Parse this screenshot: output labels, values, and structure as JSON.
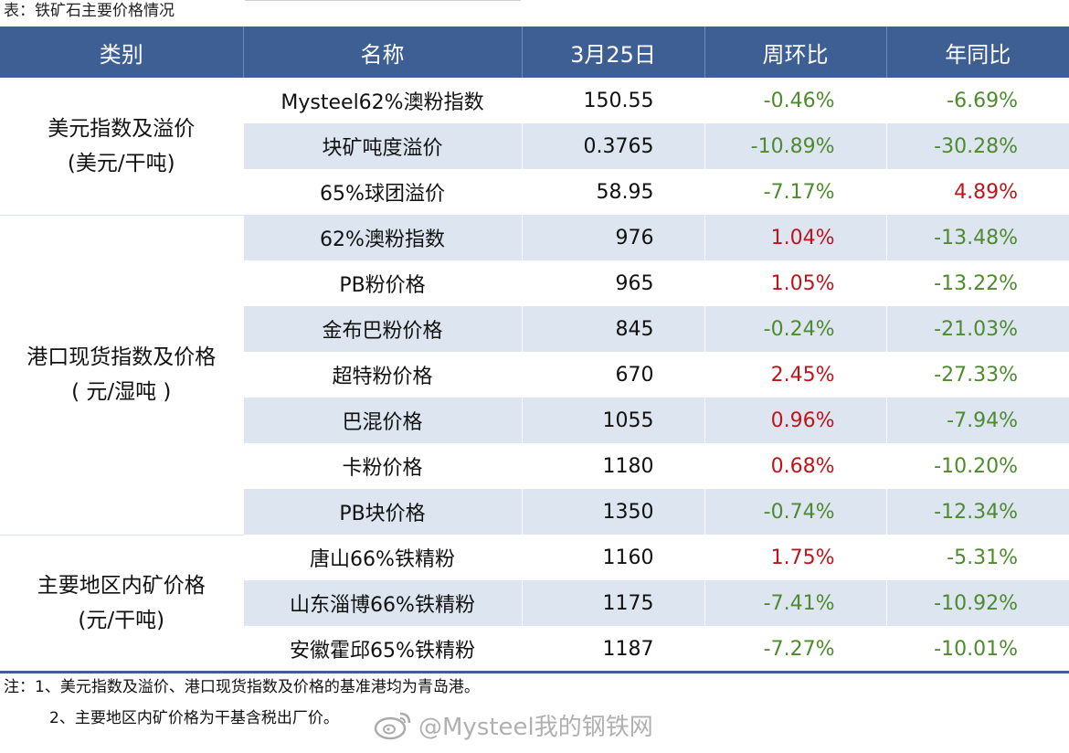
{
  "caption": "表：铁矿石主要价格情况",
  "headers": [
    "类别",
    "名称",
    "3月25日",
    "周环比",
    "年同比"
  ],
  "groups": [
    {
      "category": "美元指数及溢价\n(美元/干吨)",
      "rows": [
        {
          "name": "Mysteel62%澳粉指数",
          "value": "150.55",
          "wow": "-0.46%",
          "yoy": "-6.69%"
        },
        {
          "name": "块矿吨度溢价",
          "value": "0.3765",
          "wow": "-10.89%",
          "yoy": "-30.28%"
        },
        {
          "name": "65%球团溢价",
          "value": "58.95",
          "wow": "-7.17%",
          "yoy": "4.89%"
        }
      ]
    },
    {
      "category": "港口现货指数及价格\n( 元/湿吨 )",
      "rows": [
        {
          "name": "62%澳粉指数",
          "value": "976",
          "wow": "1.04%",
          "yoy": "-13.48%"
        },
        {
          "name": "PB粉价格",
          "value": "965",
          "wow": "1.05%",
          "yoy": "-13.22%"
        },
        {
          "name": "金布巴粉价格",
          "value": "845",
          "wow": "-0.24%",
          "yoy": "-21.03%"
        },
        {
          "name": "超特粉价格",
          "value": "670",
          "wow": "2.45%",
          "yoy": "-27.33%"
        },
        {
          "name": "巴混价格",
          "value": "1055",
          "wow": "0.96%",
          "yoy": "-7.94%"
        },
        {
          "name": "卡粉价格",
          "value": "1180",
          "wow": "0.68%",
          "yoy": "-10.20%"
        },
        {
          "name": "PB块价格",
          "value": "1350",
          "wow": "-0.74%",
          "yoy": "-12.34%"
        }
      ]
    },
    {
      "category": "主要地区内矿价格\n(元/干吨)",
      "rows": [
        {
          "name": "唐山66%铁精粉",
          "value": "1160",
          "wow": "1.75%",
          "yoy": "-5.31%"
        },
        {
          "name": "山东淄博66%铁精粉",
          "value": "1175",
          "wow": "-7.41%",
          "yoy": "-10.92%"
        },
        {
          "name": "安徽霍邱65%铁精粉",
          "value": "1187",
          "wow": "-7.27%",
          "yoy": "-10.01%"
        }
      ]
    }
  ],
  "notes": [
    "注：1、美元指数及溢价、港口现货指数及价格的基准港均为青岛港。",
    "2、主要地区内矿价格为干基含税出厂价。"
  ],
  "watermark": "@Mysteel我的钢铁网",
  "colors": {
    "header_bg": "#3e5f94",
    "stripe": "#dce5f0",
    "negative": "#4e8a2e",
    "positive": "#c0141c"
  }
}
